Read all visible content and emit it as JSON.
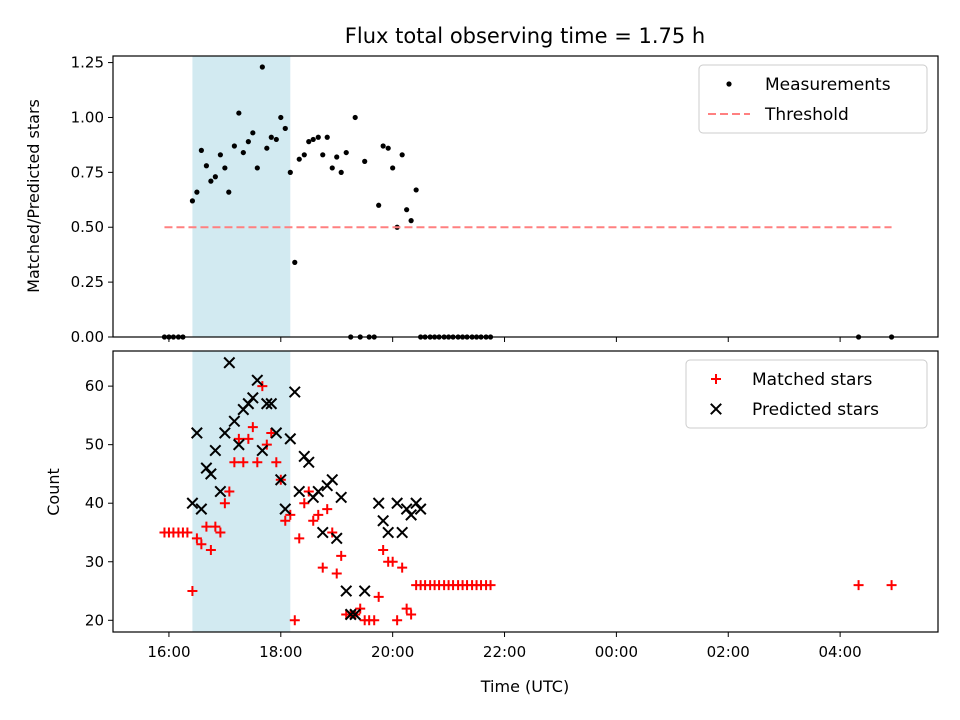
{
  "figure": {
    "title": "Flux total observing time = 1.75 h",
    "xlabel": "Time (UTC)",
    "x_tick_labels": [
      "16:00",
      "18:00",
      "20:00",
      "22:00",
      "00:00",
      "02:00",
      "04:00"
    ],
    "x_tick_hours": [
      16,
      18,
      20,
      22,
      24,
      26,
      28
    ],
    "xlim_hours": [
      15.0,
      29.75
    ],
    "shaded_interval_hours": [
      16.42,
      18.17
    ],
    "colors": {
      "shade": "#add8e6",
      "measurement": "#000000",
      "threshold": "#ff8080",
      "matched": "#ff0000",
      "predicted": "#000000"
    }
  },
  "chart_data": [
    {
      "type": "scatter",
      "ylabel": "Matched/Predicted stars",
      "ylim": [
        0,
        1.28
      ],
      "y_tick_labels": [
        "0.00",
        "0.25",
        "0.50",
        "0.75",
        "1.00",
        "1.25"
      ],
      "y_tick_values": [
        0,
        0.25,
        0.5,
        0.75,
        1.0,
        1.25
      ],
      "legend": {
        "position": "top-right",
        "entries": [
          "Measurements",
          "Threshold"
        ]
      },
      "series": [
        {
          "name": "Measurements",
          "marker": "dot",
          "points": [
            [
              15.92,
              0
            ],
            [
              16.0,
              0
            ],
            [
              16.08,
              0
            ],
            [
              16.17,
              0
            ],
            [
              16.25,
              0
            ],
            [
              16.42,
              0.62
            ],
            [
              16.5,
              0.66
            ],
            [
              16.58,
              0.85
            ],
            [
              16.67,
              0.78
            ],
            [
              16.75,
              0.71
            ],
            [
              16.83,
              0.73
            ],
            [
              16.92,
              0.83
            ],
            [
              17.0,
              0.77
            ],
            [
              17.07,
              0.66
            ],
            [
              17.17,
              0.87
            ],
            [
              17.25,
              1.02
            ],
            [
              17.33,
              0.84
            ],
            [
              17.42,
              0.89
            ],
            [
              17.5,
              0.93
            ],
            [
              17.58,
              0.77
            ],
            [
              17.67,
              1.23
            ],
            [
              17.75,
              0.86
            ],
            [
              17.83,
              0.91
            ],
            [
              17.92,
              0.9
            ],
            [
              18.0,
              1.0
            ],
            [
              18.08,
              0.95
            ],
            [
              18.17,
              0.75
            ],
            [
              18.25,
              0.34
            ],
            [
              18.33,
              0.81
            ],
            [
              18.42,
              0.83
            ],
            [
              18.5,
              0.89
            ],
            [
              18.58,
              0.9
            ],
            [
              18.67,
              0.91
            ],
            [
              18.75,
              0.83
            ],
            [
              18.83,
              0.91
            ],
            [
              18.92,
              0.77
            ],
            [
              19.0,
              0.82
            ],
            [
              19.08,
              0.75
            ],
            [
              19.17,
              0.84
            ],
            [
              19.25,
              0
            ],
            [
              19.33,
              1.0
            ],
            [
              19.42,
              0
            ],
            [
              19.5,
              0.8
            ],
            [
              19.58,
              0
            ],
            [
              19.67,
              0
            ],
            [
              19.75,
              0.6
            ],
            [
              19.83,
              0.87
            ],
            [
              19.92,
              0.86
            ],
            [
              20.0,
              0.77
            ],
            [
              20.08,
              0.5
            ],
            [
              20.17,
              0.83
            ],
            [
              20.25,
              0.58
            ],
            [
              20.33,
              0.53
            ],
            [
              20.42,
              0.67
            ],
            [
              20.5,
              0
            ],
            [
              20.58,
              0
            ],
            [
              20.67,
              0
            ],
            [
              20.75,
              0
            ],
            [
              20.83,
              0
            ],
            [
              20.92,
              0
            ],
            [
              21.0,
              0
            ],
            [
              21.08,
              0
            ],
            [
              21.17,
              0
            ],
            [
              21.25,
              0
            ],
            [
              21.33,
              0
            ],
            [
              21.42,
              0
            ],
            [
              21.5,
              0
            ],
            [
              21.58,
              0
            ],
            [
              21.67,
              0
            ],
            [
              21.75,
              0
            ],
            [
              28.33,
              0
            ],
            [
              28.92,
              0
            ]
          ]
        },
        {
          "name": "Threshold",
          "marker": "dashed-line",
          "points": [
            [
              15.92,
              0.5
            ],
            [
              28.92,
              0.5
            ]
          ]
        }
      ]
    },
    {
      "type": "scatter",
      "ylabel": "Count",
      "ylim": [
        18,
        66
      ],
      "y_tick_labels": [
        "20",
        "30",
        "40",
        "50",
        "60"
      ],
      "y_tick_values": [
        20,
        30,
        40,
        50,
        60
      ],
      "legend": {
        "position": "top-right",
        "entries": [
          "Matched stars",
          "Predicted stars"
        ]
      },
      "series": [
        {
          "name": "Matched stars",
          "marker": "plus",
          "points": [
            [
              15.92,
              35
            ],
            [
              16.0,
              35
            ],
            [
              16.08,
              35
            ],
            [
              16.17,
              35
            ],
            [
              16.25,
              35
            ],
            [
              16.33,
              35
            ],
            [
              16.42,
              25
            ],
            [
              16.5,
              34
            ],
            [
              16.58,
              33
            ],
            [
              16.67,
              36
            ],
            [
              16.75,
              32
            ],
            [
              16.83,
              36
            ],
            [
              16.92,
              35
            ],
            [
              17.0,
              40
            ],
            [
              17.08,
              42
            ],
            [
              17.17,
              47
            ],
            [
              17.25,
              51
            ],
            [
              17.33,
              47
            ],
            [
              17.42,
              51
            ],
            [
              17.5,
              53
            ],
            [
              17.58,
              47
            ],
            [
              17.67,
              60
            ],
            [
              17.75,
              50
            ],
            [
              17.83,
              52
            ],
            [
              17.92,
              47
            ],
            [
              18.0,
              44
            ],
            [
              18.08,
              37
            ],
            [
              18.17,
              38
            ],
            [
              18.25,
              20
            ],
            [
              18.33,
              34
            ],
            [
              18.42,
              40
            ],
            [
              18.5,
              42
            ],
            [
              18.58,
              37
            ],
            [
              18.67,
              38
            ],
            [
              18.75,
              29
            ],
            [
              18.83,
              39
            ],
            [
              18.92,
              35
            ],
            [
              19.0,
              28
            ],
            [
              19.08,
              31
            ],
            [
              19.17,
              21
            ],
            [
              19.25,
              21
            ],
            [
              19.33,
              21
            ],
            [
              19.42,
              22
            ],
            [
              19.5,
              20
            ],
            [
              19.58,
              20
            ],
            [
              19.67,
              20
            ],
            [
              19.75,
              24
            ],
            [
              19.83,
              32
            ],
            [
              19.92,
              30
            ],
            [
              20.0,
              30
            ],
            [
              20.08,
              20
            ],
            [
              20.17,
              29
            ],
            [
              20.25,
              22
            ],
            [
              20.33,
              21
            ],
            [
              20.42,
              26
            ],
            [
              20.5,
              26
            ],
            [
              20.58,
              26
            ],
            [
              20.67,
              26
            ],
            [
              20.75,
              26
            ],
            [
              20.83,
              26
            ],
            [
              20.92,
              26
            ],
            [
              21.0,
              26
            ],
            [
              21.08,
              26
            ],
            [
              21.17,
              26
            ],
            [
              21.25,
              26
            ],
            [
              21.33,
              26
            ],
            [
              21.42,
              26
            ],
            [
              21.5,
              26
            ],
            [
              21.58,
              26
            ],
            [
              21.67,
              26
            ],
            [
              21.75,
              26
            ],
            [
              28.33,
              26
            ],
            [
              28.92,
              26
            ]
          ]
        },
        {
          "name": "Predicted stars",
          "marker": "x",
          "points": [
            [
              16.42,
              40
            ],
            [
              16.5,
              52
            ],
            [
              16.58,
              39
            ],
            [
              16.67,
              46
            ],
            [
              16.75,
              45
            ],
            [
              16.83,
              49
            ],
            [
              16.92,
              42
            ],
            [
              17.0,
              52
            ],
            [
              17.08,
              64
            ],
            [
              17.17,
              54
            ],
            [
              17.25,
              50
            ],
            [
              17.33,
              56
            ],
            [
              17.42,
              57
            ],
            [
              17.5,
              58
            ],
            [
              17.58,
              61
            ],
            [
              17.67,
              49
            ],
            [
              17.75,
              57
            ],
            [
              17.83,
              57
            ],
            [
              17.92,
              52
            ],
            [
              18.0,
              44
            ],
            [
              18.08,
              39
            ],
            [
              18.17,
              51
            ],
            [
              18.25,
              59
            ],
            [
              18.33,
              42
            ],
            [
              18.42,
              48
            ],
            [
              18.5,
              47
            ],
            [
              18.58,
              41
            ],
            [
              18.67,
              42
            ],
            [
              18.75,
              35
            ],
            [
              18.83,
              43
            ],
            [
              18.92,
              44
            ],
            [
              19.0,
              34
            ],
            [
              19.08,
              41
            ],
            [
              19.17,
              25
            ],
            [
              19.25,
              21
            ],
            [
              19.33,
              21
            ],
            [
              19.5,
              25
            ],
            [
              19.75,
              40
            ],
            [
              19.83,
              37
            ],
            [
              19.92,
              35
            ],
            [
              20.08,
              40
            ],
            [
              20.17,
              35
            ],
            [
              20.25,
              39
            ],
            [
              20.33,
              38
            ],
            [
              20.42,
              40
            ],
            [
              20.5,
              39
            ]
          ]
        }
      ]
    }
  ]
}
